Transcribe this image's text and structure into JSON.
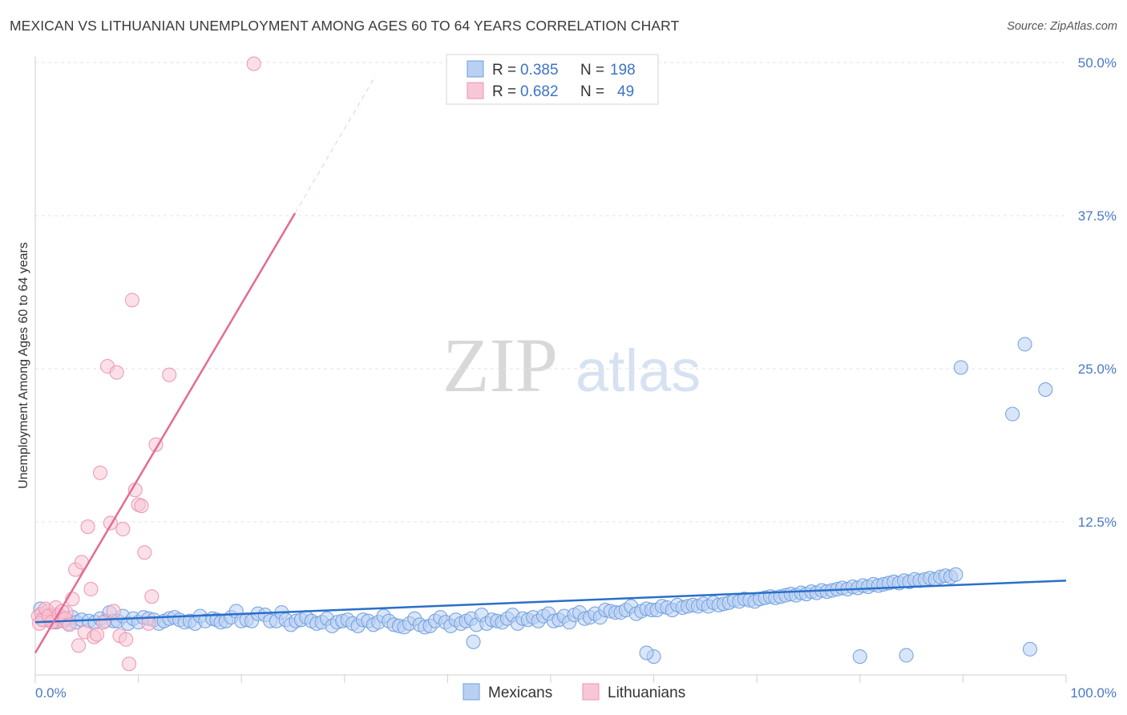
{
  "header": {
    "title": "MEXICAN VS LITHUANIAN UNEMPLOYMENT AMONG AGES 60 TO 64 YEARS CORRELATION CHART",
    "source": "Source: ZipAtlas.com"
  },
  "watermark": {
    "part1": "ZIP",
    "part2": "atlas"
  },
  "colors": {
    "mexicans": "#6d9fe0",
    "mexicans_fill": "#b9d0f2",
    "mexicans_line": "#2a6fc9",
    "lithuanians": "#ee93b0",
    "lithuanians_fill": "#f8c7d6",
    "lithuanians_line": "#e36b96",
    "grid": "#e3e3e3",
    "tick_text": "#4a78c2"
  },
  "legend": {
    "rows": [
      {
        "r_label": "R = ",
        "r_value": "0.385",
        "n_label": "N = ",
        "n_value": "198"
      },
      {
        "r_label": "R = ",
        "r_value": "0.682",
        "n_label": "N = ",
        "n_value": "49"
      }
    ]
  },
  "chart_data": {
    "type": "scatter",
    "title": "MEXICAN VS LITHUANIAN UNEMPLOYMENT AMONG AGES 60 TO 64 YEARS CORRELATION CHART",
    "xlabel": "",
    "ylabel": "Unemployment Among Ages 60 to 64 years",
    "xlim": [
      0,
      100
    ],
    "ylim": [
      0,
      50
    ],
    "x_tick_labels": [
      "0.0%",
      "100.0%"
    ],
    "y_ticks": [
      12.5,
      25.0,
      37.5,
      50.0
    ],
    "y_tick_labels": [
      "12.5%",
      "25.0%",
      "37.5%",
      "50.0%"
    ],
    "grid": true,
    "legend_position": "top-center",
    "series": [
      {
        "name": "Mexicans",
        "R": 0.385,
        "N": 198,
        "trend": {
          "x0": 0,
          "y0": 4.3,
          "x1": 100,
          "y1": 7.7
        },
        "points": [
          [
            0.5,
            5.4
          ],
          [
            0.8,
            4.8
          ],
          [
            1.2,
            4.5
          ],
          [
            1.5,
            4.9
          ],
          [
            2.0,
            4.3
          ],
          [
            2.3,
            4.6
          ],
          [
            2.8,
            4.4
          ],
          [
            3.2,
            4.2
          ],
          [
            3.6,
            4.7
          ],
          [
            4.0,
            4.3
          ],
          [
            4.5,
            4.5
          ],
          [
            5.2,
            4.4
          ],
          [
            5.8,
            4.3
          ],
          [
            6.3,
            4.6
          ],
          [
            6.8,
            4.4
          ],
          [
            7.2,
            5.1
          ],
          [
            7.6,
            4.4
          ],
          [
            8.0,
            4.4
          ],
          [
            8.5,
            4.8
          ],
          [
            9.0,
            4.2
          ],
          [
            9.5,
            4.6
          ],
          [
            10.0,
            4.3
          ],
          [
            10.5,
            4.7
          ],
          [
            11.0,
            4.6
          ],
          [
            11.5,
            4.5
          ],
          [
            12.0,
            4.2
          ],
          [
            12.5,
            4.4
          ],
          [
            13.0,
            4.6
          ],
          [
            13.5,
            4.7
          ],
          [
            14.0,
            4.5
          ],
          [
            14.5,
            4.3
          ],
          [
            15.0,
            4.4
          ],
          [
            15.5,
            4.2
          ],
          [
            16.0,
            4.8
          ],
          [
            16.5,
            4.4
          ],
          [
            17.2,
            4.6
          ],
          [
            17.6,
            4.5
          ],
          [
            18.0,
            4.3
          ],
          [
            18.5,
            4.4
          ],
          [
            19.0,
            4.7
          ],
          [
            19.5,
            5.2
          ],
          [
            20.0,
            4.4
          ],
          [
            20.5,
            4.5
          ],
          [
            21.0,
            4.4
          ],
          [
            21.6,
            5.0
          ],
          [
            22.3,
            4.9
          ],
          [
            22.8,
            4.4
          ],
          [
            23.4,
            4.4
          ],
          [
            23.9,
            5.1
          ],
          [
            24.3,
            4.5
          ],
          [
            24.8,
            4.1
          ],
          [
            25.3,
            4.4
          ],
          [
            25.8,
            4.5
          ],
          [
            26.3,
            4.7
          ],
          [
            26.8,
            4.4
          ],
          [
            27.3,
            4.2
          ],
          [
            27.8,
            4.3
          ],
          [
            28.3,
            4.6
          ],
          [
            28.8,
            4.0
          ],
          [
            29.3,
            4.3
          ],
          [
            29.8,
            4.4
          ],
          [
            30.3,
            4.5
          ],
          [
            30.8,
            4.2
          ],
          [
            31.3,
            4.0
          ],
          [
            31.8,
            4.5
          ],
          [
            32.3,
            4.4
          ],
          [
            32.8,
            4.1
          ],
          [
            33.3,
            4.3
          ],
          [
            33.8,
            4.8
          ],
          [
            34.3,
            4.4
          ],
          [
            34.8,
            4.1
          ],
          [
            35.3,
            4.0
          ],
          [
            35.8,
            3.9
          ],
          [
            36.3,
            4.2
          ],
          [
            36.8,
            4.6
          ],
          [
            37.3,
            4.1
          ],
          [
            37.8,
            3.9
          ],
          [
            38.3,
            4.0
          ],
          [
            38.8,
            4.4
          ],
          [
            39.3,
            4.7
          ],
          [
            39.8,
            4.3
          ],
          [
            40.3,
            4.0
          ],
          [
            40.8,
            4.5
          ],
          [
            41.3,
            4.2
          ],
          [
            41.8,
            4.4
          ],
          [
            42.3,
            4.6
          ],
          [
            42.8,
            4.1
          ],
          [
            43.3,
            4.9
          ],
          [
            43.8,
            4.2
          ],
          [
            44.3,
            4.5
          ],
          [
            44.8,
            4.4
          ],
          [
            45.3,
            4.3
          ],
          [
            45.8,
            4.6
          ],
          [
            46.3,
            4.9
          ],
          [
            46.8,
            4.2
          ],
          [
            47.3,
            4.6
          ],
          [
            47.8,
            4.5
          ],
          [
            48.3,
            4.7
          ],
          [
            48.8,
            4.4
          ],
          [
            49.3,
            4.8
          ],
          [
            49.8,
            5.0
          ],
          [
            50.3,
            4.4
          ],
          [
            50.8,
            4.5
          ],
          [
            51.3,
            4.8
          ],
          [
            51.8,
            4.3
          ],
          [
            52.3,
            4.9
          ],
          [
            52.8,
            5.1
          ],
          [
            53.3,
            4.6
          ],
          [
            53.8,
            4.7
          ],
          [
            54.3,
            5.0
          ],
          [
            54.8,
            4.7
          ],
          [
            55.3,
            5.3
          ],
          [
            55.8,
            5.2
          ],
          [
            56.3,
            5.1
          ],
          [
            56.8,
            5.1
          ],
          [
            57.3,
            5.3
          ],
          [
            57.8,
            5.6
          ],
          [
            58.3,
            5.0
          ],
          [
            58.8,
            5.2
          ],
          [
            59.3,
            5.4
          ],
          [
            59.8,
            5.3
          ],
          [
            60.3,
            5.3
          ],
          [
            60.8,
            5.6
          ],
          [
            61.3,
            5.5
          ],
          [
            61.8,
            5.3
          ],
          [
            62.3,
            5.7
          ],
          [
            62.8,
            5.5
          ],
          [
            63.3,
            5.6
          ],
          [
            63.8,
            5.7
          ],
          [
            64.3,
            5.6
          ],
          [
            64.8,
            5.8
          ],
          [
            65.3,
            5.6
          ],
          [
            65.8,
            5.9
          ],
          [
            66.3,
            5.7
          ],
          [
            66.8,
            5.8
          ],
          [
            67.3,
            5.9
          ],
          [
            67.8,
            6.1
          ],
          [
            68.3,
            6.0
          ],
          [
            68.8,
            6.2
          ],
          [
            69.3,
            6.1
          ],
          [
            69.8,
            6.0
          ],
          [
            70.3,
            6.2
          ],
          [
            70.8,
            6.3
          ],
          [
            71.3,
            6.4
          ],
          [
            71.8,
            6.3
          ],
          [
            72.3,
            6.4
          ],
          [
            72.8,
            6.5
          ],
          [
            73.3,
            6.6
          ],
          [
            73.8,
            6.5
          ],
          [
            74.3,
            6.7
          ],
          [
            74.8,
            6.6
          ],
          [
            75.3,
            6.8
          ],
          [
            75.8,
            6.7
          ],
          [
            76.3,
            6.9
          ],
          [
            76.8,
            6.8
          ],
          [
            77.3,
            6.9
          ],
          [
            77.8,
            7.0
          ],
          [
            78.3,
            7.1
          ],
          [
            78.8,
            7.0
          ],
          [
            79.3,
            7.2
          ],
          [
            79.8,
            7.1
          ],
          [
            80.3,
            7.3
          ],
          [
            80.8,
            7.2
          ],
          [
            81.3,
            7.4
          ],
          [
            81.8,
            7.3
          ],
          [
            82.3,
            7.4
          ],
          [
            82.8,
            7.5
          ],
          [
            83.3,
            7.6
          ],
          [
            83.8,
            7.5
          ],
          [
            84.3,
            7.7
          ],
          [
            84.8,
            7.6
          ],
          [
            85.3,
            7.8
          ],
          [
            85.8,
            7.7
          ],
          [
            86.3,
            7.8
          ],
          [
            86.8,
            7.9
          ],
          [
            87.3,
            7.8
          ],
          [
            87.8,
            8.0
          ],
          [
            88.3,
            8.1
          ],
          [
            88.8,
            8.0
          ],
          [
            89.3,
            8.2
          ],
          [
            89.8,
            25.1
          ],
          [
            94.8,
            21.3
          ],
          [
            96.0,
            27.0
          ],
          [
            98.0,
            23.3
          ],
          [
            60.0,
            1.5
          ],
          [
            80.0,
            1.5
          ],
          [
            84.5,
            1.6
          ],
          [
            96.5,
            2.1
          ],
          [
            42.5,
            2.7
          ],
          [
            59.3,
            1.8
          ]
        ]
      },
      {
        "name": "Lithuanians",
        "R": 0.682,
        "N": 49,
        "trend": {
          "x0": 0,
          "y0": 1.8,
          "x1": 25.2,
          "y1": 37.7,
          "dash_x1": 33.0,
          "dash_y1": 48.9
        },
        "points": [
          [
            0.3,
            4.8
          ],
          [
            0.6,
            5.0
          ],
          [
            0.9,
            4.5
          ],
          [
            1.2,
            5.2
          ],
          [
            1.5,
            4.6
          ],
          [
            1.8,
            4.9
          ],
          [
            2.1,
            4.4
          ],
          [
            2.4,
            4.7
          ],
          [
            2.7,
            4.4
          ],
          [
            3.0,
            5.1
          ],
          [
            0.4,
            4.2
          ],
          [
            0.7,
            4.5
          ],
          [
            1.0,
            5.4
          ],
          [
            1.3,
            4.8
          ],
          [
            1.6,
            4.3
          ],
          [
            2.0,
            5.5
          ],
          [
            2.3,
            4.9
          ],
          [
            2.6,
            5.2
          ],
          [
            2.9,
            4.6
          ],
          [
            3.3,
            4.1
          ],
          [
            3.6,
            6.2
          ],
          [
            3.9,
            8.6
          ],
          [
            4.2,
            2.4
          ],
          [
            4.5,
            9.2
          ],
          [
            4.8,
            3.5
          ],
          [
            5.1,
            12.1
          ],
          [
            5.4,
            7.0
          ],
          [
            5.7,
            3.1
          ],
          [
            6.0,
            3.3
          ],
          [
            6.3,
            16.5
          ],
          [
            6.6,
            4.3
          ],
          [
            7.0,
            25.2
          ],
          [
            7.3,
            12.4
          ],
          [
            7.6,
            5.2
          ],
          [
            7.9,
            24.7
          ],
          [
            8.2,
            3.2
          ],
          [
            8.5,
            11.9
          ],
          [
            8.8,
            2.9
          ],
          [
            9.1,
            0.9
          ],
          [
            9.4,
            30.6
          ],
          [
            9.7,
            15.1
          ],
          [
            10.0,
            13.9
          ],
          [
            10.3,
            13.8
          ],
          [
            10.6,
            10.0
          ],
          [
            11.0,
            4.2
          ],
          [
            11.3,
            6.4
          ],
          [
            11.7,
            18.8
          ],
          [
            13.0,
            24.5
          ],
          [
            21.2,
            49.9
          ]
        ]
      }
    ]
  },
  "bottom_legend": {
    "items": [
      {
        "label": "Mexicans"
      },
      {
        "label": "Lithuanians"
      }
    ]
  }
}
